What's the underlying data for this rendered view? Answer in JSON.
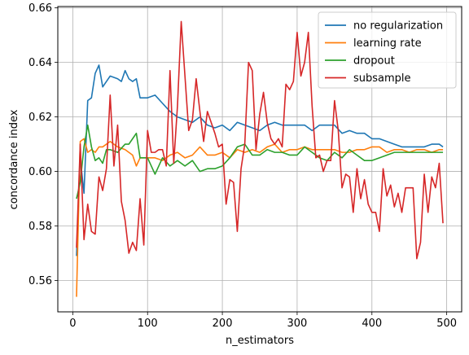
{
  "chart_data": {
    "type": "line",
    "xlabel": "n_estimators",
    "ylabel": "concordance index",
    "xlim": [
      -20,
      520
    ],
    "ylim": [
      0.5485,
      0.6605
    ],
    "xticks": [
      0,
      100,
      200,
      300,
      400,
      500
    ],
    "xtick_labels": [
      "0",
      "100",
      "200",
      "300",
      "400",
      "500"
    ],
    "yticks": [
      0.56,
      0.58,
      0.6,
      0.62,
      0.64,
      0.66
    ],
    "ytick_labels": [
      "0.56",
      "0.58",
      "0.60",
      "0.62",
      "0.64",
      "0.66"
    ],
    "grid": true,
    "legend_position": "top-right",
    "series": [
      {
        "name": "no regularization",
        "color": "#1f77b4",
        "x": [
          5,
          10,
          15,
          20,
          25,
          30,
          35,
          40,
          45,
          50,
          60,
          65,
          70,
          75,
          80,
          85,
          90,
          95,
          100,
          110,
          120,
          130,
          140,
          150,
          160,
          170,
          180,
          190,
          200,
          210,
          220,
          230,
          240,
          250,
          260,
          270,
          280,
          290,
          300,
          310,
          320,
          330,
          340,
          350,
          360,
          370,
          380,
          390,
          400,
          410,
          420,
          430,
          440,
          450,
          460,
          470,
          480,
          490,
          495
        ],
        "values": [
          0.569,
          0.605,
          0.592,
          0.626,
          0.627,
          0.636,
          0.639,
          0.631,
          0.633,
          0.635,
          0.634,
          0.633,
          0.637,
          0.634,
          0.633,
          0.634,
          0.627,
          0.627,
          0.627,
          0.628,
          0.625,
          0.622,
          0.62,
          0.619,
          0.618,
          0.62,
          0.617,
          0.616,
          0.617,
          0.615,
          0.618,
          0.617,
          0.616,
          0.615,
          0.617,
          0.618,
          0.617,
          0.617,
          0.617,
          0.617,
          0.615,
          0.617,
          0.617,
          0.617,
          0.614,
          0.615,
          0.614,
          0.614,
          0.612,
          0.612,
          0.611,
          0.61,
          0.609,
          0.609,
          0.609,
          0.609,
          0.61,
          0.61,
          0.609
        ]
      },
      {
        "name": "learning rate",
        "color": "#ff7f0e",
        "x": [
          5,
          10,
          15,
          20,
          25,
          30,
          35,
          40,
          45,
          50,
          60,
          70,
          80,
          85,
          90,
          100,
          110,
          120,
          130,
          140,
          150,
          160,
          170,
          180,
          190,
          200,
          210,
          220,
          230,
          240,
          250,
          260,
          270,
          280,
          290,
          300,
          310,
          320,
          330,
          340,
          350,
          360,
          370,
          380,
          390,
          400,
          410,
          420,
          430,
          440,
          450,
          460,
          470,
          480,
          490,
          495
        ],
        "values": [
          0.554,
          0.611,
          0.612,
          0.607,
          0.608,
          0.607,
          0.609,
          0.609,
          0.61,
          0.611,
          0.609,
          0.608,
          0.606,
          0.602,
          0.605,
          0.605,
          0.605,
          0.604,
          0.606,
          0.607,
          0.605,
          0.606,
          0.609,
          0.606,
          0.606,
          0.607,
          0.605,
          0.608,
          0.607,
          0.608,
          0.607,
          0.609,
          0.61,
          0.607,
          0.608,
          0.608,
          0.609,
          0.608,
          0.608,
          0.608,
          0.608,
          0.607,
          0.607,
          0.608,
          0.608,
          0.609,
          0.609,
          0.607,
          0.608,
          0.608,
          0.607,
          0.608,
          0.608,
          0.607,
          0.608,
          0.608
        ]
      },
      {
        "name": "dropout",
        "color": "#2ca02c",
        "x": [
          5,
          10,
          15,
          20,
          25,
          30,
          35,
          40,
          45,
          50,
          60,
          70,
          75,
          80,
          85,
          90,
          100,
          110,
          120,
          130,
          140,
          150,
          160,
          170,
          180,
          190,
          200,
          210,
          220,
          230,
          240,
          250,
          260,
          270,
          280,
          290,
          300,
          310,
          320,
          330,
          340,
          350,
          360,
          370,
          380,
          390,
          400,
          410,
          420,
          430,
          440,
          450,
          460,
          470,
          480,
          490,
          495
        ],
        "values": [
          0.59,
          0.596,
          0.609,
          0.617,
          0.609,
          0.604,
          0.605,
          0.603,
          0.608,
          0.608,
          0.607,
          0.61,
          0.61,
          0.612,
          0.614,
          0.605,
          0.605,
          0.599,
          0.605,
          0.602,
          0.604,
          0.602,
          0.604,
          0.6,
          0.601,
          0.601,
          0.602,
          0.605,
          0.609,
          0.61,
          0.606,
          0.606,
          0.608,
          0.607,
          0.607,
          0.606,
          0.606,
          0.609,
          0.607,
          0.605,
          0.604,
          0.607,
          0.605,
          0.608,
          0.606,
          0.604,
          0.604,
          0.605,
          0.606,
          0.607,
          0.607,
          0.607,
          0.607,
          0.607,
          0.607,
          0.607,
          0.607
        ]
      },
      {
        "name": "subsample",
        "color": "#d62728",
        "x": [
          5,
          10,
          15,
          20,
          25,
          30,
          35,
          40,
          45,
          50,
          55,
          60,
          65,
          70,
          75,
          80,
          85,
          90,
          95,
          100,
          105,
          110,
          115,
          120,
          125,
          130,
          135,
          140,
          145,
          150,
          155,
          160,
          165,
          170,
          175,
          180,
          185,
          190,
          195,
          200,
          205,
          210,
          215,
          220,
          225,
          230,
          235,
          240,
          245,
          250,
          255,
          260,
          265,
          270,
          275,
          280,
          285,
          290,
          295,
          300,
          305,
          310,
          315,
          320,
          325,
          330,
          335,
          340,
          345,
          350,
          355,
          360,
          365,
          370,
          375,
          380,
          385,
          390,
          395,
          400,
          405,
          410,
          415,
          420,
          425,
          430,
          435,
          440,
          445,
          450,
          455,
          460,
          465,
          470,
          475,
          480,
          485,
          490,
          495
        ],
        "values": [
          0.572,
          0.61,
          0.575,
          0.588,
          0.578,
          0.577,
          0.598,
          0.593,
          0.601,
          0.628,
          0.602,
          0.617,
          0.589,
          0.582,
          0.57,
          0.574,
          0.571,
          0.59,
          0.573,
          0.615,
          0.607,
          0.607,
          0.608,
          0.608,
          0.602,
          0.637,
          0.603,
          0.624,
          0.655,
          0.635,
          0.615,
          0.619,
          0.634,
          0.622,
          0.611,
          0.622,
          0.618,
          0.614,
          0.609,
          0.61,
          0.588,
          0.597,
          0.596,
          0.578,
          0.601,
          0.61,
          0.64,
          0.637,
          0.608,
          0.621,
          0.629,
          0.618,
          0.612,
          0.61,
          0.612,
          0.609,
          0.632,
          0.63,
          0.633,
          0.651,
          0.635,
          0.64,
          0.651,
          0.624,
          0.605,
          0.606,
          0.6,
          0.604,
          0.604,
          0.626,
          0.615,
          0.594,
          0.599,
          0.598,
          0.585,
          0.601,
          0.59,
          0.597,
          0.588,
          0.585,
          0.585,
          0.578,
          0.601,
          0.591,
          0.595,
          0.587,
          0.592,
          0.585,
          0.594,
          0.594,
          0.594,
          0.568,
          0.574,
          0.599,
          0.585,
          0.598,
          0.594,
          0.603,
          0.581
        ]
      }
    ]
  }
}
